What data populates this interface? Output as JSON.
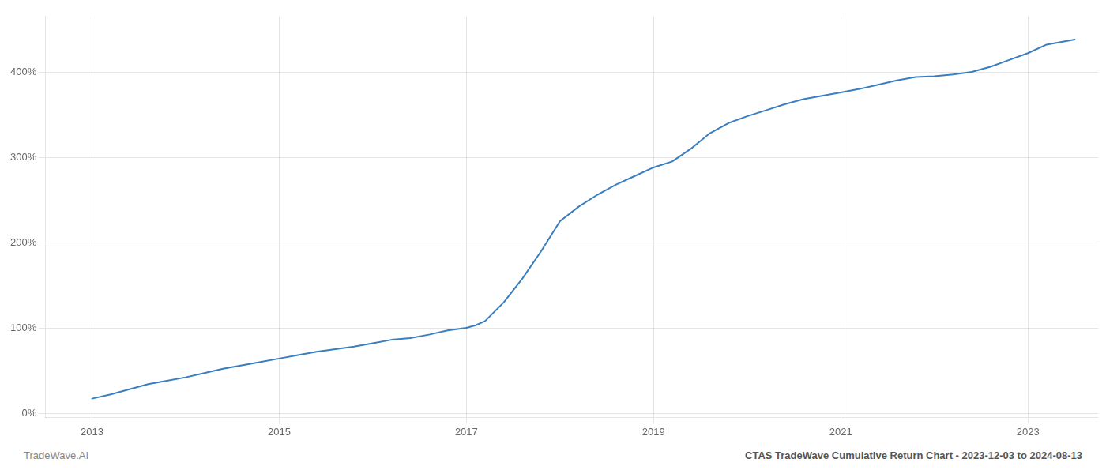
{
  "chart_data": {
    "type": "line",
    "title": "CTAS TradeWave Cumulative Return Chart - 2023-12-03 to 2024-08-13",
    "annotations": [
      "TradeWave.AI"
    ],
    "color": "#3a7ebf",
    "grid": true,
    "xlim": [
      2012.5,
      2023.75
    ],
    "xticks": [
      2013,
      2015,
      2017,
      2019,
      2021,
      2023
    ],
    "ylim": [
      -0.05,
      4.65
    ],
    "yticks": [
      {
        "value": 0.0,
        "label": "0%"
      },
      {
        "value": 1.0,
        "label": "100%"
      },
      {
        "value": 2.0,
        "label": "200%"
      },
      {
        "value": 3.0,
        "label": "300%"
      },
      {
        "value": 4.0,
        "label": "400%"
      }
    ],
    "x": [
      2013.0,
      2013.2,
      2013.4,
      2013.6,
      2013.8,
      2014.0,
      2014.2,
      2014.4,
      2014.6,
      2014.8,
      2015.0,
      2015.2,
      2015.4,
      2015.6,
      2015.8,
      2016.0,
      2016.2,
      2016.4,
      2016.6,
      2016.8,
      2017.0,
      2017.1,
      2017.2,
      2017.4,
      2017.6,
      2017.8,
      2018.0,
      2018.2,
      2018.4,
      2018.6,
      2018.8,
      2019.0,
      2019.2,
      2019.4,
      2019.6,
      2019.8,
      2020.0,
      2020.2,
      2020.4,
      2020.6,
      2020.8,
      2021.0,
      2021.2,
      2021.4,
      2021.6,
      2021.8,
      2022.0,
      2022.2,
      2022.4,
      2022.6,
      2022.8,
      2023.0,
      2023.2,
      2023.5
    ],
    "values": [
      0.17,
      0.22,
      0.28,
      0.34,
      0.38,
      0.42,
      0.47,
      0.52,
      0.56,
      0.6,
      0.64,
      0.68,
      0.72,
      0.75,
      0.78,
      0.82,
      0.86,
      0.88,
      0.92,
      0.97,
      1.0,
      1.03,
      1.08,
      1.3,
      1.58,
      1.9,
      2.25,
      2.42,
      2.56,
      2.68,
      2.78,
      2.88,
      2.95,
      3.1,
      3.28,
      3.4,
      3.48,
      3.55,
      3.62,
      3.68,
      3.72,
      3.76,
      3.8,
      3.85,
      3.9,
      3.94,
      3.95,
      3.97,
      4.0,
      4.06,
      4.14,
      4.22,
      4.32,
      4.38
    ]
  }
}
